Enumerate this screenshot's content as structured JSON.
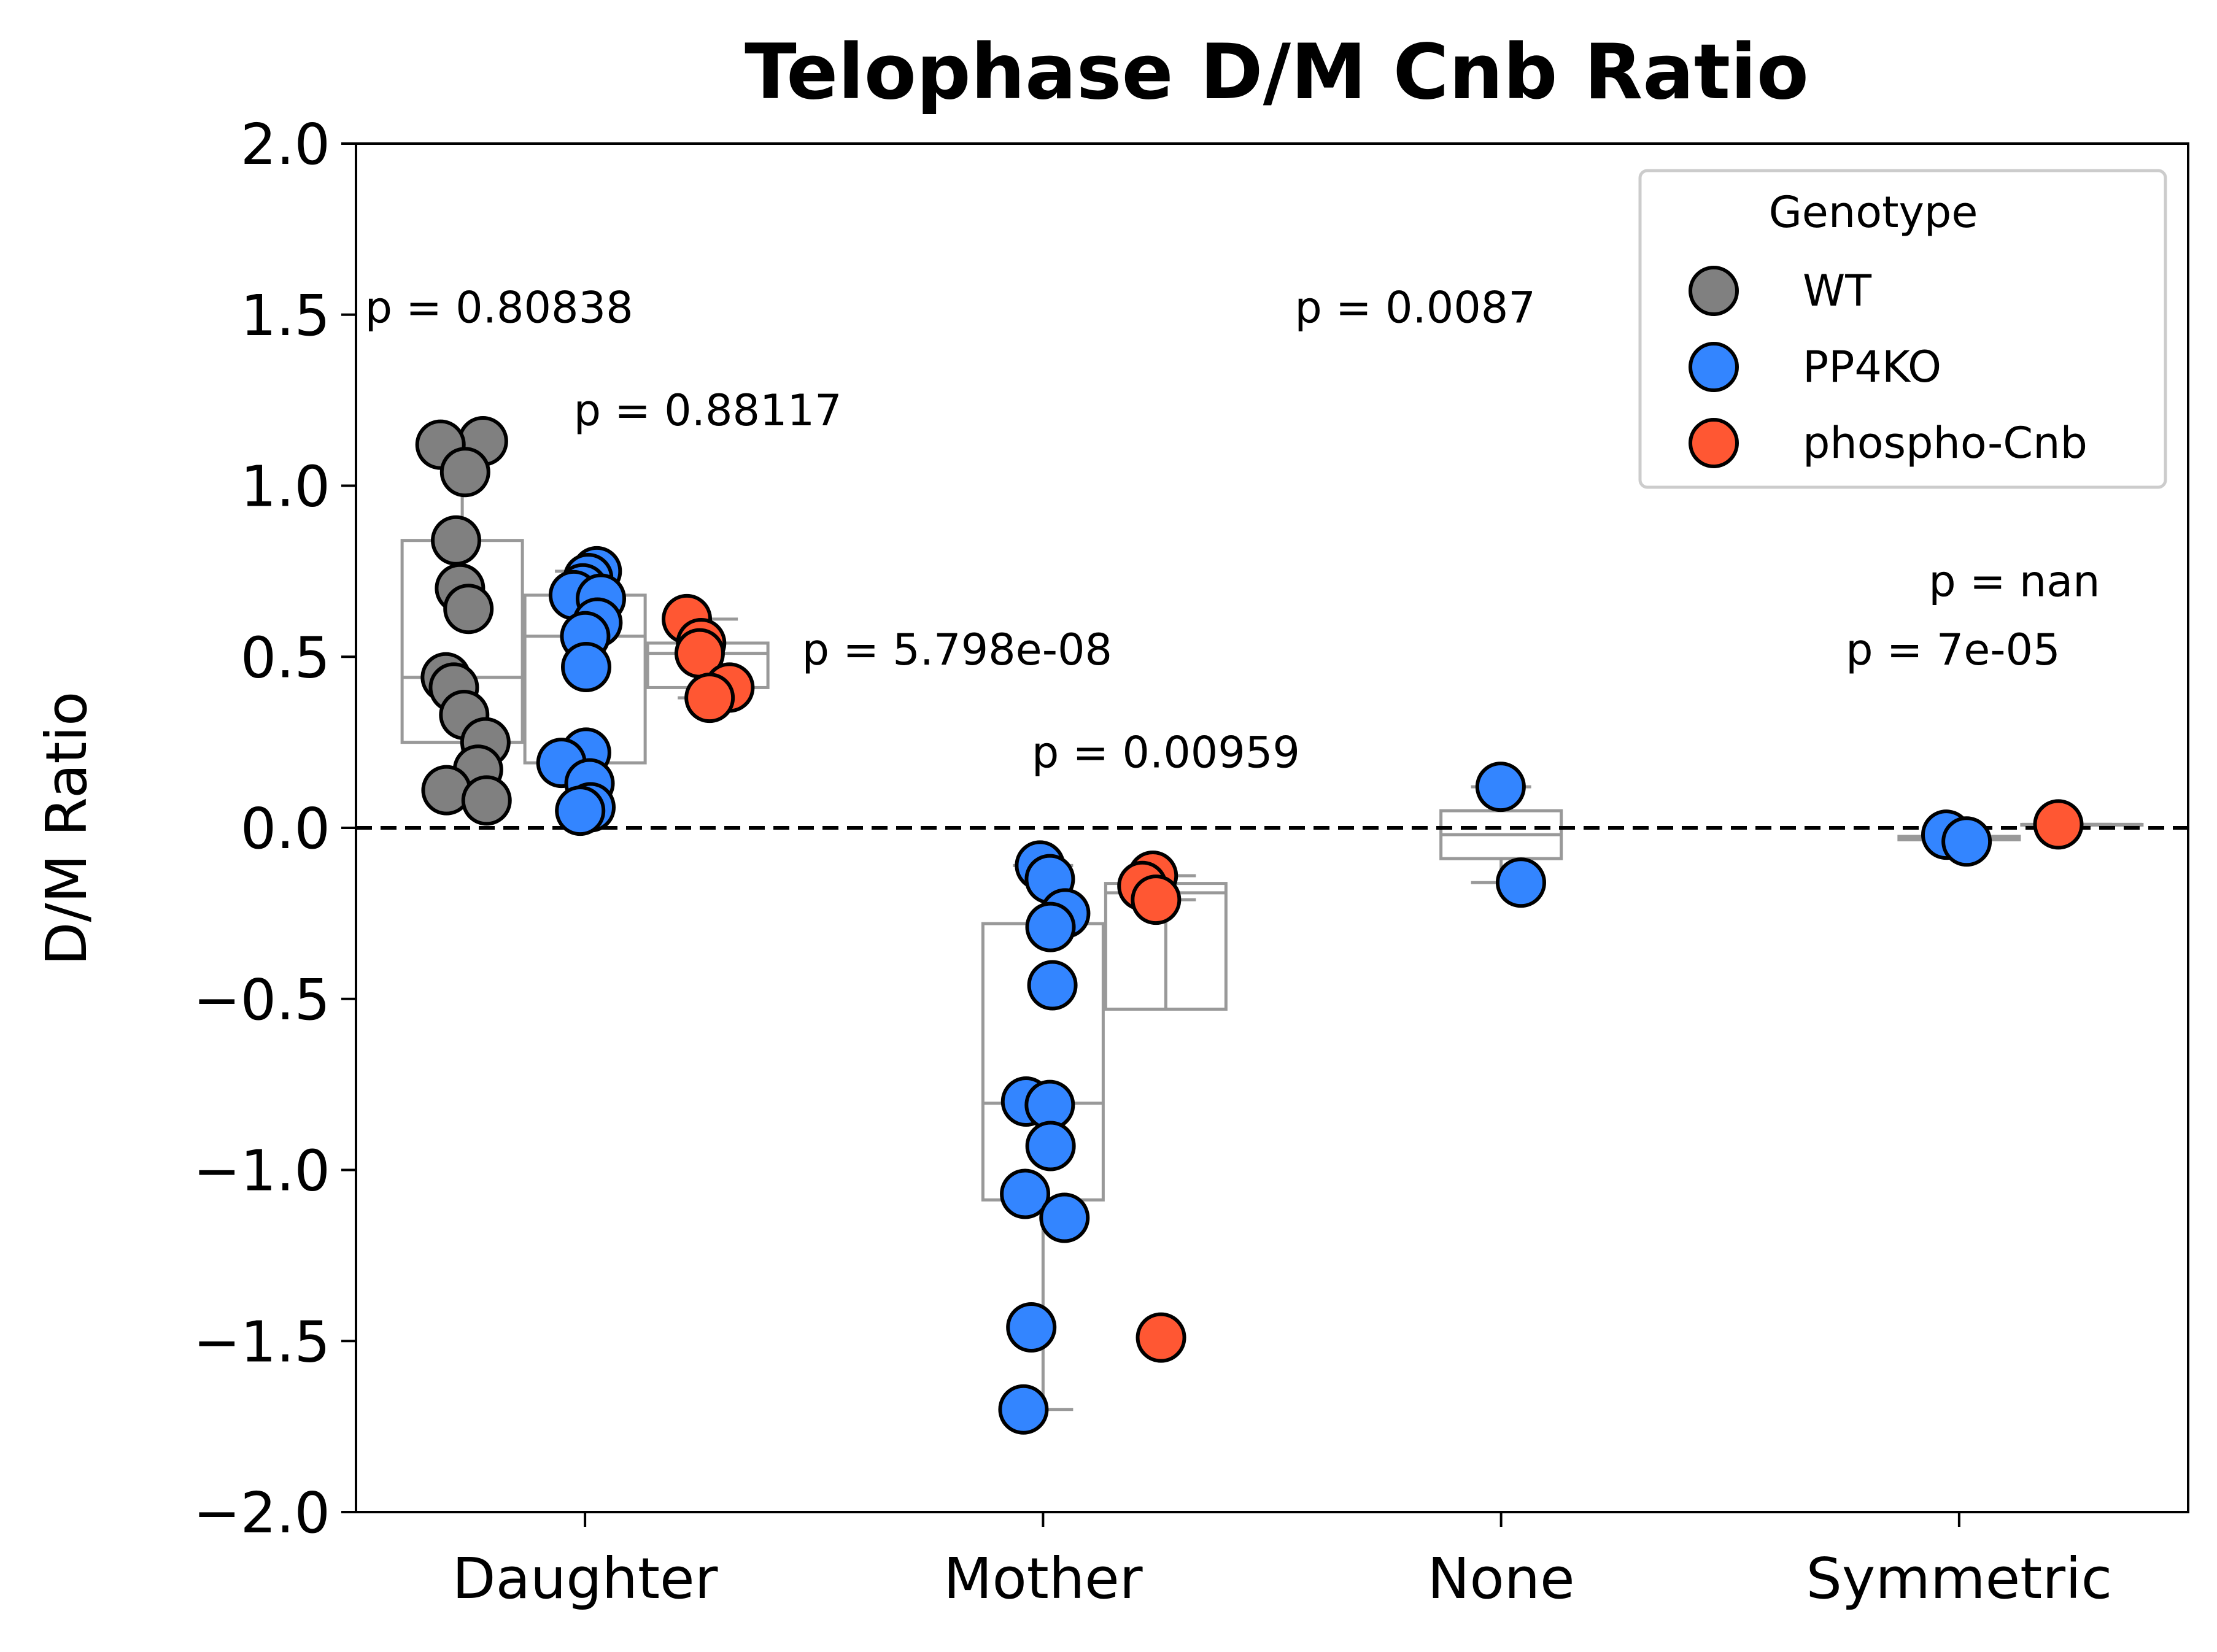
{
  "chart_data": {
    "type": "box+strip",
    "title": "Telophase D/M Cnb Ratio",
    "xlabel": "",
    "ylabel": "D/M Ratio",
    "ylim": [
      -2.0,
      2.0
    ],
    "yticks": [
      2.0,
      1.5,
      1.0,
      0.5,
      0.0,
      -0.5,
      -1.0,
      -1.5,
      -2.0
    ],
    "ytick_labels": [
      "2.0",
      "1.5",
      "1.0",
      "0.5",
      "0.0",
      "−0.5",
      "−1.0",
      "−1.5",
      "−2.0"
    ],
    "categories": [
      "Daughter",
      "Mother",
      "None",
      "Symmetric"
    ],
    "reference_line": {
      "y": 0.0,
      "style": "dashed",
      "color": "#000000"
    },
    "grid": false,
    "legend": {
      "title": "Genotype",
      "placement": "top-right",
      "entries": [
        {
          "name": "WT",
          "color": "#808080"
        },
        {
          "name": "PP4KO",
          "color": "#3385FF"
        },
        {
          "name": "phospho-Cnb",
          "color": "#FF5733"
        }
      ]
    },
    "series": [
      {
        "name": "WT",
        "color": "#808080",
        "groups": [
          {
            "category": "Daughter",
            "values": [
              1.13,
              1.12,
              1.04,
              0.84,
              0.7,
              0.64,
              0.44,
              0.41,
              0.33,
              0.25,
              0.17,
              0.11,
              0.08
            ]
          },
          {
            "category": "Mother",
            "values": []
          },
          {
            "category": "None",
            "values": []
          },
          {
            "category": "Symmetric",
            "values": []
          }
        ]
      },
      {
        "name": "PP4KO",
        "color": "#3385FF",
        "groups": [
          {
            "category": "Daughter",
            "values": [
              0.75,
              0.73,
              0.7,
              0.68,
              0.67,
              0.6,
              0.56,
              0.47,
              0.22,
              0.19,
              0.13,
              0.06,
              0.05
            ]
          },
          {
            "category": "Mother",
            "values": [
              -0.11,
              -0.15,
              -0.25,
              -0.29,
              -0.46,
              -0.8,
              -0.81,
              -0.93,
              -1.07,
              -1.14,
              -1.46,
              -1.7
            ]
          },
          {
            "category": "None",
            "values": [
              0.12,
              -0.16
            ]
          },
          {
            "category": "Symmetric",
            "values": [
              -0.02,
              -0.04
            ]
          }
        ]
      },
      {
        "name": "phospho-Cnb",
        "color": "#FF5733",
        "groups": [
          {
            "category": "Daughter",
            "values": [
              0.61,
              0.54,
              0.51,
              0.41,
              0.38
            ]
          },
          {
            "category": "Mother",
            "values": [
              -0.14,
              -0.17,
              -0.21,
              -1.49
            ]
          },
          {
            "category": "None",
            "values": []
          },
          {
            "category": "Symmetric",
            "values": [
              0.01
            ]
          }
        ]
      }
    ],
    "annotations": [
      {
        "text": "p = 0.80838",
        "x_category": "Daughter",
        "y": 1.52
      },
      {
        "text": "p = 0.88117",
        "x_category": "Daughter",
        "y": 1.22
      },
      {
        "text": "p = 5.798e-08",
        "x_category": "Mother",
        "y": 0.52
      },
      {
        "text": "p = 0.00959",
        "x_category": "Mother",
        "y": 0.22
      },
      {
        "text": "p = 0.0087",
        "x_category": "None",
        "y": 1.52
      },
      {
        "text": "p = nan",
        "x_category": "Symmetric",
        "y": 0.72
      },
      {
        "text": "p = 7e-05",
        "x_category": "Symmetric",
        "y": 0.52
      }
    ]
  }
}
